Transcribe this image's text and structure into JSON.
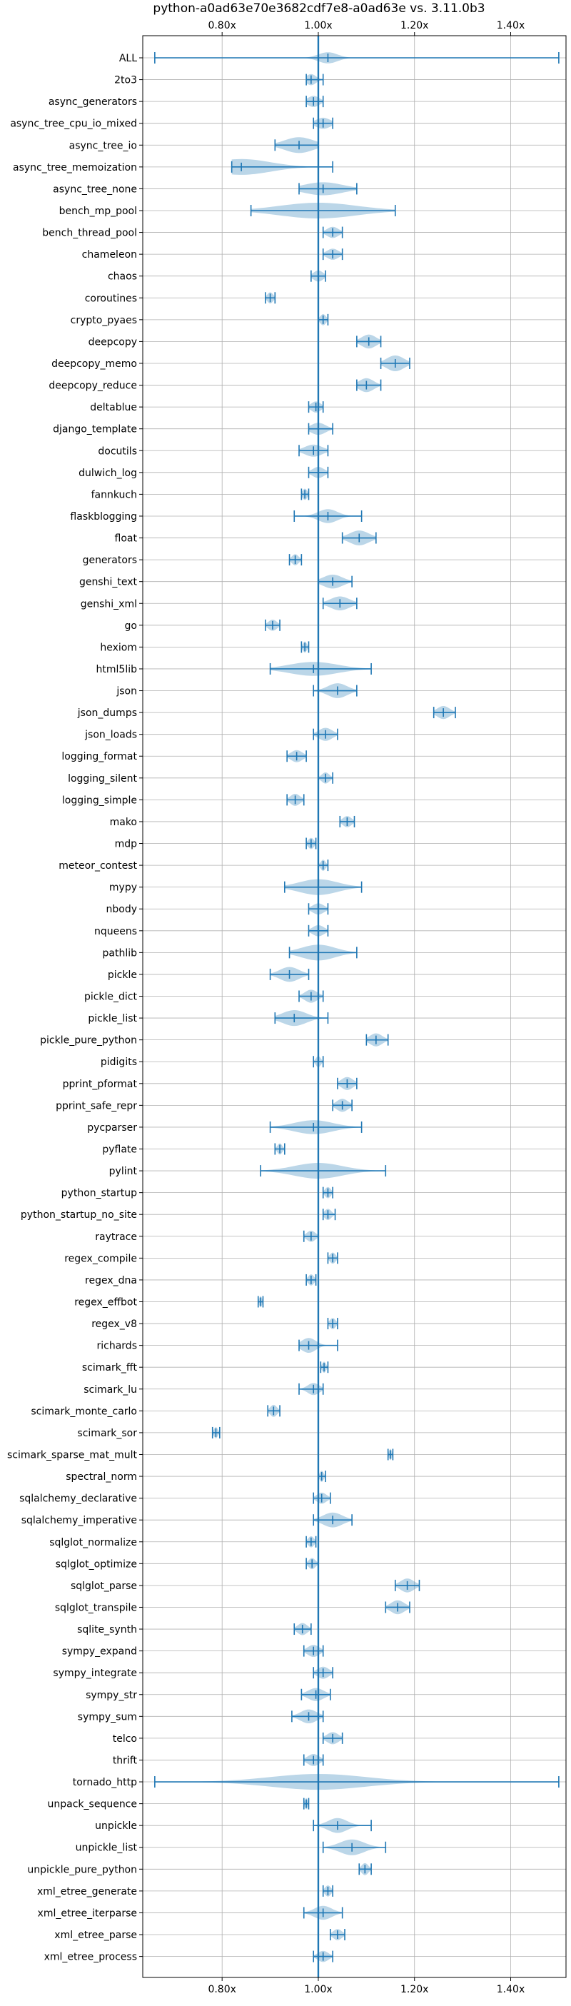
{
  "chart_data": {
    "type": "violin",
    "orientation": "horizontal",
    "title": "python-a0ad63e70e3682cdf7e8-a0ad63e vs. 3.11.0b3",
    "xlim": [
      0.635,
      1.515
    ],
    "xticks": [
      0.8,
      1.0,
      1.2,
      1.4
    ],
    "xtick_labels": [
      "0.80x",
      "1.00x",
      "1.20x",
      "1.40x"
    ],
    "reference_x": 1.0,
    "grid": true,
    "benchmarks": [
      {
        "name": "ALL",
        "min": 0.66,
        "max": 1.5,
        "center": 1.02,
        "spread": 0.02,
        "width": 0.6
      },
      {
        "name": "2to3",
        "min": 0.975,
        "max": 1.01,
        "center": 0.985,
        "spread": 0.01,
        "width": 0.6
      },
      {
        "name": "async_generators",
        "min": 0.975,
        "max": 1.01,
        "center": 0.99,
        "spread": 0.012,
        "width": 0.6
      },
      {
        "name": "async_tree_cpu_io_mixed",
        "min": 0.99,
        "max": 1.03,
        "center": 1.01,
        "spread": 0.015,
        "width": 0.6
      },
      {
        "name": "async_tree_io",
        "min": 0.91,
        "max": 1.0,
        "center": 0.96,
        "spread": 0.03,
        "width": 0.85
      },
      {
        "name": "async_tree_memoization",
        "min": 0.82,
        "max": 1.03,
        "center": 0.84,
        "spread": 0.06,
        "width": 0.85
      },
      {
        "name": "async_tree_none",
        "min": 0.96,
        "max": 1.08,
        "center": 1.01,
        "spread": 0.04,
        "width": 0.7
      },
      {
        "name": "bench_mp_pool",
        "min": 0.86,
        "max": 1.16,
        "center": 1.0,
        "spread": 0.08,
        "width": 0.85
      },
      {
        "name": "bench_thread_pool",
        "min": 1.01,
        "max": 1.05,
        "center": 1.03,
        "spread": 0.012,
        "width": 0.6
      },
      {
        "name": "chameleon",
        "min": 1.01,
        "max": 1.05,
        "center": 1.03,
        "spread": 0.012,
        "width": 0.6
      },
      {
        "name": "chaos",
        "min": 0.985,
        "max": 1.015,
        "center": 1.0,
        "spread": 0.01,
        "width": 0.6
      },
      {
        "name": "coroutines",
        "min": 0.89,
        "max": 0.91,
        "center": 0.9,
        "spread": 0.006,
        "width": 0.6
      },
      {
        "name": "crypto_pyaes",
        "min": 1.0,
        "max": 1.02,
        "center": 1.01,
        "spread": 0.006,
        "width": 0.6
      },
      {
        "name": "deepcopy",
        "min": 1.08,
        "max": 1.13,
        "center": 1.105,
        "spread": 0.015,
        "width": 0.75
      },
      {
        "name": "deepcopy_memo",
        "min": 1.13,
        "max": 1.19,
        "center": 1.16,
        "spread": 0.018,
        "width": 0.85
      },
      {
        "name": "deepcopy_reduce",
        "min": 1.08,
        "max": 1.13,
        "center": 1.1,
        "spread": 0.015,
        "width": 0.75
      },
      {
        "name": "deltablue",
        "min": 0.98,
        "max": 1.01,
        "center": 0.995,
        "spread": 0.01,
        "width": 0.6
      },
      {
        "name": "django_template",
        "min": 0.98,
        "max": 1.03,
        "center": 1.0,
        "spread": 0.015,
        "width": 0.65
      },
      {
        "name": "docutils",
        "min": 0.96,
        "max": 1.02,
        "center": 0.99,
        "spread": 0.018,
        "width": 0.65
      },
      {
        "name": "dulwich_log",
        "min": 0.98,
        "max": 1.02,
        "center": 1.0,
        "spread": 0.012,
        "width": 0.6
      },
      {
        "name": "fannkuch",
        "min": 0.965,
        "max": 0.98,
        "center": 0.972,
        "spread": 0.005,
        "width": 0.6
      },
      {
        "name": "flaskblogging",
        "min": 0.95,
        "max": 1.09,
        "center": 1.02,
        "spread": 0.02,
        "width": 0.75
      },
      {
        "name": "float",
        "min": 1.05,
        "max": 1.12,
        "center": 1.085,
        "spread": 0.02,
        "width": 0.8
      },
      {
        "name": "generators",
        "min": 0.94,
        "max": 0.965,
        "center": 0.952,
        "spread": 0.007,
        "width": 0.6
      },
      {
        "name": "genshi_text",
        "min": 1.0,
        "max": 1.07,
        "center": 1.03,
        "spread": 0.02,
        "width": 0.75
      },
      {
        "name": "genshi_xml",
        "min": 1.01,
        "max": 1.08,
        "center": 1.045,
        "spread": 0.02,
        "width": 0.75
      },
      {
        "name": "go",
        "min": 0.89,
        "max": 0.92,
        "center": 0.905,
        "spread": 0.009,
        "width": 0.6
      },
      {
        "name": "hexiom",
        "min": 0.965,
        "max": 0.98,
        "center": 0.972,
        "spread": 0.004,
        "width": 0.6
      },
      {
        "name": "html5lib",
        "min": 0.9,
        "max": 1.11,
        "center": 0.99,
        "spread": 0.05,
        "width": 0.75
      },
      {
        "name": "json",
        "min": 0.99,
        "max": 1.08,
        "center": 1.04,
        "spread": 0.02,
        "width": 0.8
      },
      {
        "name": "json_dumps",
        "min": 1.24,
        "max": 1.285,
        "center": 1.26,
        "spread": 0.013,
        "width": 0.7
      },
      {
        "name": "json_loads",
        "min": 0.99,
        "max": 1.04,
        "center": 1.015,
        "spread": 0.014,
        "width": 0.7
      },
      {
        "name": "logging_format",
        "min": 0.935,
        "max": 0.975,
        "center": 0.955,
        "spread": 0.012,
        "width": 0.65
      },
      {
        "name": "logging_silent",
        "min": 1.0,
        "max": 1.03,
        "center": 1.015,
        "spread": 0.008,
        "width": 0.6
      },
      {
        "name": "logging_simple",
        "min": 0.935,
        "max": 0.97,
        "center": 0.952,
        "spread": 0.01,
        "width": 0.65
      },
      {
        "name": "mako",
        "min": 1.045,
        "max": 1.075,
        "center": 1.06,
        "spread": 0.009,
        "width": 0.6
      },
      {
        "name": "mdp",
        "min": 0.975,
        "max": 0.995,
        "center": 0.985,
        "spread": 0.006,
        "width": 0.6
      },
      {
        "name": "meteor_contest",
        "min": 1.0,
        "max": 1.02,
        "center": 1.01,
        "spread": 0.005,
        "width": 0.6
      },
      {
        "name": "mypy",
        "min": 0.93,
        "max": 1.09,
        "center": 1.0,
        "spread": 0.04,
        "width": 0.85
      },
      {
        "name": "nbody",
        "min": 0.98,
        "max": 1.02,
        "center": 1.0,
        "spread": 0.012,
        "width": 0.6
      },
      {
        "name": "nqueens",
        "min": 0.98,
        "max": 1.02,
        "center": 1.0,
        "spread": 0.012,
        "width": 0.6
      },
      {
        "name": "pathlib",
        "min": 0.94,
        "max": 1.08,
        "center": 1.0,
        "spread": 0.035,
        "width": 0.85
      },
      {
        "name": "pickle",
        "min": 0.9,
        "max": 0.98,
        "center": 0.94,
        "spread": 0.02,
        "width": 0.8
      },
      {
        "name": "pickle_dict",
        "min": 0.96,
        "max": 1.01,
        "center": 0.985,
        "spread": 0.013,
        "width": 0.7
      },
      {
        "name": "pickle_list",
        "min": 0.91,
        "max": 1.02,
        "center": 0.95,
        "spread": 0.025,
        "width": 0.85
      },
      {
        "name": "pickle_pure_python",
        "min": 1.1,
        "max": 1.145,
        "center": 1.12,
        "spread": 0.013,
        "width": 0.7
      },
      {
        "name": "pidigits",
        "min": 0.99,
        "max": 1.01,
        "center": 1.0,
        "spread": 0.005,
        "width": 0.6
      },
      {
        "name": "pprint_pformat",
        "min": 1.04,
        "max": 1.08,
        "center": 1.06,
        "spread": 0.012,
        "width": 0.7
      },
      {
        "name": "pprint_safe_repr",
        "min": 1.03,
        "max": 1.07,
        "center": 1.05,
        "spread": 0.012,
        "width": 0.7
      },
      {
        "name": "pycparser",
        "min": 0.9,
        "max": 1.09,
        "center": 0.99,
        "spread": 0.04,
        "width": 0.75
      },
      {
        "name": "pyflate",
        "min": 0.91,
        "max": 0.93,
        "center": 0.92,
        "spread": 0.005,
        "width": 0.6
      },
      {
        "name": "pylint",
        "min": 0.88,
        "max": 1.14,
        "center": 1.0,
        "spread": 0.05,
        "width": 0.85
      },
      {
        "name": "python_startup",
        "min": 1.01,
        "max": 1.03,
        "center": 1.02,
        "spread": 0.006,
        "width": 0.6
      },
      {
        "name": "python_startup_no_site",
        "min": 1.01,
        "max": 1.035,
        "center": 1.02,
        "spread": 0.007,
        "width": 0.6
      },
      {
        "name": "raytrace",
        "min": 0.97,
        "max": 1.0,
        "center": 0.985,
        "spread": 0.009,
        "width": 0.6
      },
      {
        "name": "regex_compile",
        "min": 1.02,
        "max": 1.04,
        "center": 1.03,
        "spread": 0.006,
        "width": 0.6
      },
      {
        "name": "regex_dna",
        "min": 0.975,
        "max": 0.995,
        "center": 0.985,
        "spread": 0.006,
        "width": 0.6
      },
      {
        "name": "regex_effbot",
        "min": 0.875,
        "max": 0.885,
        "center": 0.88,
        "spread": 0.003,
        "width": 0.6
      },
      {
        "name": "regex_v8",
        "min": 1.02,
        "max": 1.04,
        "center": 1.03,
        "spread": 0.006,
        "width": 0.6
      },
      {
        "name": "richards",
        "min": 0.96,
        "max": 1.04,
        "center": 0.98,
        "spread": 0.015,
        "width": 0.8
      },
      {
        "name": "scimark_fft",
        "min": 1.005,
        "max": 1.02,
        "center": 1.012,
        "spread": 0.004,
        "width": 0.6
      },
      {
        "name": "scimark_lu",
        "min": 0.96,
        "max": 1.01,
        "center": 0.99,
        "spread": 0.012,
        "width": 0.65
      },
      {
        "name": "scimark_monte_carlo",
        "min": 0.895,
        "max": 0.92,
        "center": 0.907,
        "spread": 0.007,
        "width": 0.65
      },
      {
        "name": "scimark_sor",
        "min": 0.78,
        "max": 0.795,
        "center": 0.787,
        "spread": 0.004,
        "width": 0.6
      },
      {
        "name": "scimark_sparse_mat_mult",
        "min": 1.145,
        "max": 1.155,
        "center": 1.15,
        "spread": 0.003,
        "width": 0.6
      },
      {
        "name": "spectral_norm",
        "min": 1.0,
        "max": 1.015,
        "center": 1.007,
        "spread": 0.004,
        "width": 0.6
      },
      {
        "name": "sqlalchemy_declarative",
        "min": 0.99,
        "max": 1.025,
        "center": 1.007,
        "spread": 0.01,
        "width": 0.6
      },
      {
        "name": "sqlalchemy_imperative",
        "min": 0.99,
        "max": 1.07,
        "center": 1.03,
        "spread": 0.02,
        "width": 0.8
      },
      {
        "name": "sqlglot_normalize",
        "min": 0.975,
        "max": 0.995,
        "center": 0.985,
        "spread": 0.006,
        "width": 0.6
      },
      {
        "name": "sqlglot_optimize",
        "min": 0.975,
        "max": 1.0,
        "center": 0.987,
        "spread": 0.007,
        "width": 0.6
      },
      {
        "name": "sqlglot_parse",
        "min": 1.16,
        "max": 1.21,
        "center": 1.185,
        "spread": 0.014,
        "width": 0.75
      },
      {
        "name": "sqlglot_transpile",
        "min": 1.14,
        "max": 1.19,
        "center": 1.165,
        "spread": 0.014,
        "width": 0.75
      },
      {
        "name": "sqlite_synth",
        "min": 0.95,
        "max": 0.985,
        "center": 0.967,
        "spread": 0.01,
        "width": 0.65
      },
      {
        "name": "sympy_expand",
        "min": 0.97,
        "max": 1.01,
        "center": 0.99,
        "spread": 0.012,
        "width": 0.65
      },
      {
        "name": "sympy_integrate",
        "min": 0.99,
        "max": 1.03,
        "center": 1.01,
        "spread": 0.012,
        "width": 0.65
      },
      {
        "name": "sympy_str",
        "min": 0.965,
        "max": 1.025,
        "center": 0.995,
        "spread": 0.016,
        "width": 0.7
      },
      {
        "name": "sympy_sum",
        "min": 0.945,
        "max": 1.01,
        "center": 0.98,
        "spread": 0.017,
        "width": 0.75
      },
      {
        "name": "telco",
        "min": 1.01,
        "max": 1.05,
        "center": 1.03,
        "spread": 0.012,
        "width": 0.65
      },
      {
        "name": "thrift",
        "min": 0.97,
        "max": 1.01,
        "center": 0.99,
        "spread": 0.012,
        "width": 0.65
      },
      {
        "name": "tornado_http",
        "min": 0.66,
        "max": 1.5,
        "center": 1.0,
        "spread": 0.1,
        "width": 0.85
      },
      {
        "name": "unpack_sequence",
        "min": 0.97,
        "max": 0.98,
        "center": 0.975,
        "spread": 0.003,
        "width": 0.6
      },
      {
        "name": "unpickle",
        "min": 0.99,
        "max": 1.11,
        "center": 1.04,
        "spread": 0.02,
        "width": 0.8
      },
      {
        "name": "unpickle_list",
        "min": 1.01,
        "max": 1.14,
        "center": 1.07,
        "spread": 0.025,
        "width": 0.85
      },
      {
        "name": "unpickle_pure_python",
        "min": 1.085,
        "max": 1.11,
        "center": 1.097,
        "spread": 0.007,
        "width": 0.65
      },
      {
        "name": "xml_etree_generate",
        "min": 1.01,
        "max": 1.03,
        "center": 1.02,
        "spread": 0.006,
        "width": 0.6
      },
      {
        "name": "xml_etree_iterparse",
        "min": 0.97,
        "max": 1.05,
        "center": 1.01,
        "spread": 0.018,
        "width": 0.75
      },
      {
        "name": "xml_etree_parse",
        "min": 1.025,
        "max": 1.055,
        "center": 1.04,
        "spread": 0.009,
        "width": 0.6
      },
      {
        "name": "xml_etree_process",
        "min": 0.99,
        "max": 1.03,
        "center": 1.01,
        "spread": 0.011,
        "width": 0.6
      }
    ]
  }
}
